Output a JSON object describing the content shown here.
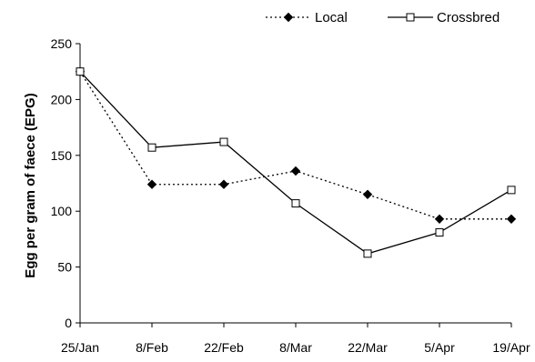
{
  "chart_data": {
    "type": "line",
    "title": "",
    "xlabel": "",
    "ylabel": "Egg per gram of faece (EPG)",
    "categories": [
      "25/Jan",
      "8/Feb",
      "22/Feb",
      "8/Mar",
      "22/Mar",
      "5/Apr",
      "19/Apr"
    ],
    "ylim": [
      0,
      250
    ],
    "yticks": [
      0,
      50,
      100,
      150,
      200,
      250
    ],
    "grid": false,
    "legend_position": "top-right",
    "series": [
      {
        "name": "Local",
        "values": [
          225,
          124,
          124,
          136,
          115,
          93,
          93
        ],
        "color": "#000000",
        "line_style": "dotted",
        "marker": "filled-diamond"
      },
      {
        "name": "Crossbred",
        "values": [
          225,
          157,
          162,
          107,
          62,
          81,
          119
        ],
        "color": "#000000",
        "line_style": "solid",
        "marker": "open-square"
      }
    ]
  }
}
